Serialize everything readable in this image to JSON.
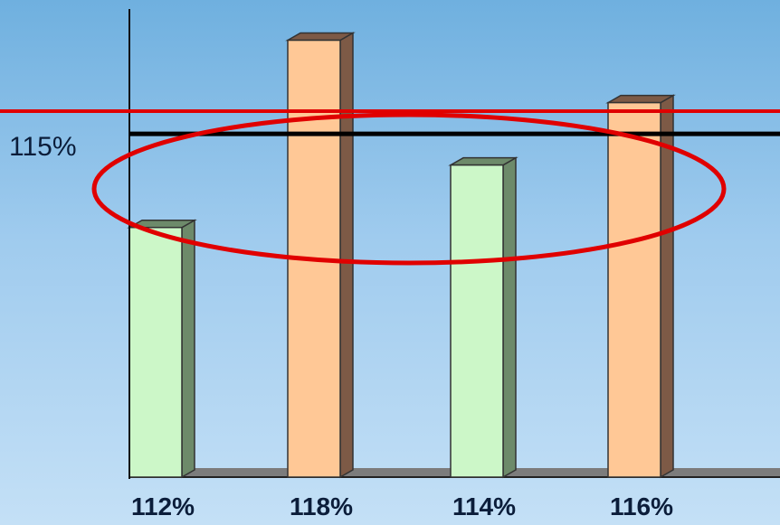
{
  "chart_data": {
    "type": "bar",
    "categories": [
      "112%",
      "118%",
      "114%",
      "116%"
    ],
    "values": [
      112,
      118,
      114,
      116
    ],
    "ylim": [
      104,
      119
    ],
    "reference_line": {
      "value": 115,
      "label": "115%"
    },
    "bar_colors": [
      "#ccf7c8",
      "#ffc896",
      "#ccf7c8",
      "#ffc896"
    ],
    "bar_side_colors": [
      "#6d8a6a",
      "#7d5a46",
      "#6d8a6a",
      "#7d5a46"
    ],
    "highlight_color": "#e00000",
    "grid": false,
    "legend": "none"
  }
}
